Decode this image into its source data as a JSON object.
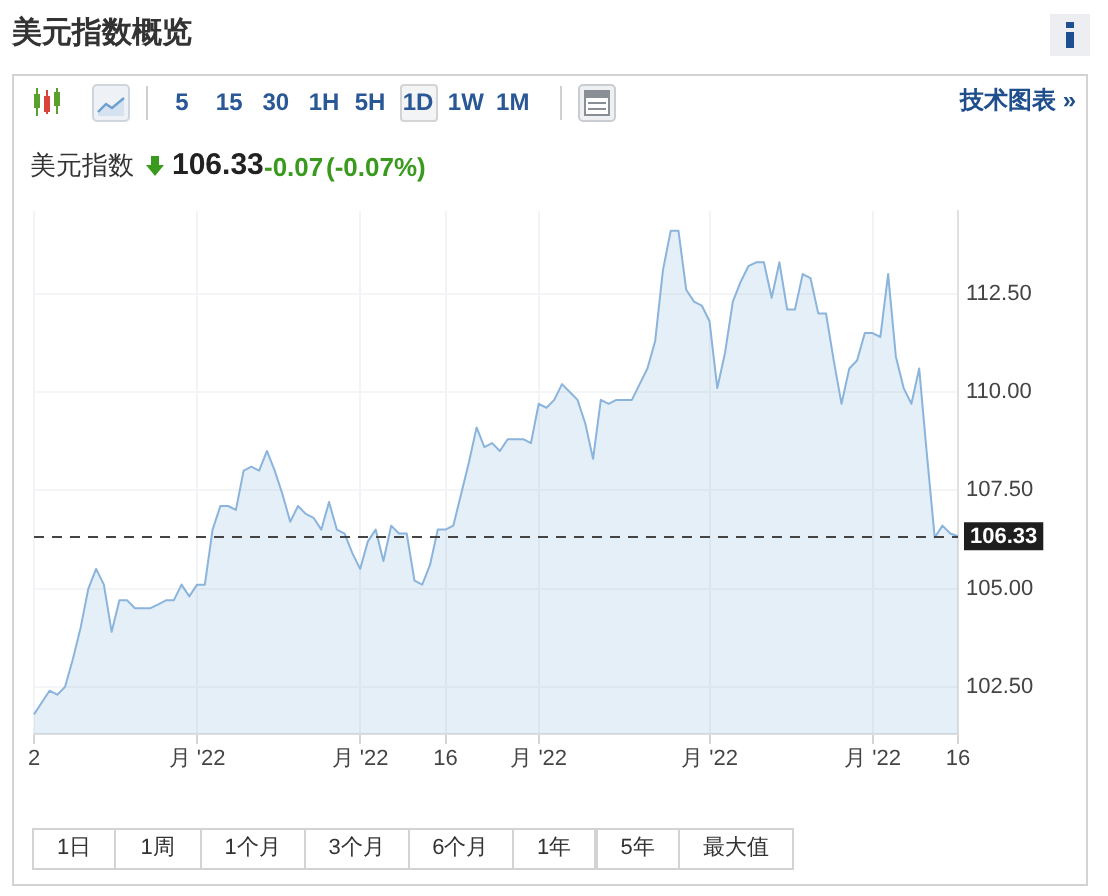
{
  "chart_data": {
    "type": "area",
    "title": "美元指数概览",
    "subtitle": "美元指数",
    "annotations": [
      "106.33",
      "-0.07",
      "(-0.07%)",
      "5",
      "15",
      "30",
      "1H",
      "5H",
      "1D",
      "1W",
      "1M",
      "技术图表 »",
      "1日",
      "1周",
      "1个月",
      "3个月",
      "6个月",
      "1年",
      "5年",
      "最大值"
    ],
    "categories": [
      "2",
      null,
      null,
      null,
      null,
      null,
      null,
      null,
      null,
      null,
      null,
      null,
      null,
      null,
      null,
      null,
      null,
      null,
      null,
      null,
      null,
      "月 '22",
      null,
      null,
      null,
      null,
      null,
      null,
      null,
      null,
      null,
      null,
      null,
      null,
      null,
      null,
      null,
      null,
      null,
      null,
      null,
      null,
      "月 '22",
      null,
      null,
      null,
      null,
      null,
      null,
      null,
      null,
      null,
      null,
      "16",
      null,
      null,
      null,
      null,
      null,
      null,
      null,
      null,
      null,
      null,
      null,
      "月 '22",
      null,
      null,
      null,
      null,
      null,
      null,
      null,
      null,
      null,
      null,
      null,
      null,
      null,
      null,
      null,
      null,
      null,
      null,
      null,
      null,
      null,
      "月 '22",
      null,
      null,
      null,
      null,
      null,
      null,
      null,
      null,
      null,
      null,
      null,
      null,
      null,
      null,
      null,
      null,
      null,
      null,
      null,
      null,
      "月 '22",
      null,
      null,
      null,
      null,
      null,
      null,
      null,
      null,
      null,
      null,
      "16"
    ],
    "series": [
      {
        "color": "#8ab4dc",
        "values": [
          101.8,
          102.1,
          102.4,
          102.3,
          102.5,
          103.2,
          104.0,
          105.0,
          105.5,
          105.1,
          103.9,
          104.7,
          104.7,
          104.5,
          104.5,
          104.5,
          104.6,
          104.7,
          104.7,
          105.1,
          104.8,
          105.1,
          105.1,
          106.5,
          107.1,
          107.1,
          107.0,
          108.0,
          108.1,
          108.0,
          108.5,
          108.0,
          107.4,
          106.7,
          107.1,
          106.9,
          106.8,
          106.5,
          107.2,
          106.5,
          106.4,
          105.9,
          105.5,
          106.2,
          106.5,
          105.7,
          106.6,
          106.4,
          106.4,
          105.2,
          105.1,
          105.6,
          106.5,
          106.5,
          106.6,
          107.4,
          108.2,
          109.1,
          108.6,
          108.7,
          108.5,
          108.8,
          108.8,
          108.8,
          108.7,
          109.7,
          109.6,
          109.8,
          110.2,
          110.0,
          109.8,
          109.2,
          108.3,
          109.8,
          109.7,
          109.8,
          109.8,
          109.8,
          110.2,
          110.6,
          111.3,
          113.1,
          114.1,
          114.1,
          112.6,
          112.3,
          112.2,
          111.8,
          110.1,
          111.0,
          112.3,
          112.8,
          113.2,
          113.3,
          113.3,
          112.4,
          113.3,
          112.1,
          112.1,
          113.0,
          112.9,
          112.0,
          112.0,
          110.8,
          109.7,
          110.6,
          110.8,
          111.5,
          111.5,
          111.4,
          113.0,
          110.9,
          110.1,
          109.7,
          110.6,
          108.4,
          106.3,
          106.6,
          106.4,
          106.33
        ]
      }
    ],
    "ylim": [
      101.3,
      114.6
    ],
    "yticks": [
      {
        "value": 102.5,
        "label": "102.50"
      },
      {
        "value": 105,
        "label": "105.00"
      },
      {
        "value": 107.5,
        "label": "107.50"
      },
      {
        "value": 110,
        "label": "110.00"
      },
      {
        "value": 112.5,
        "label": "112.50"
      }
    ],
    "ref_lines": [
      {
        "axis": "y",
        "value": 106.33,
        "label": "106.33",
        "color": "#444444",
        "line_style": "dashed"
      }
    ],
    "grid": true,
    "marker": "none"
  }
}
